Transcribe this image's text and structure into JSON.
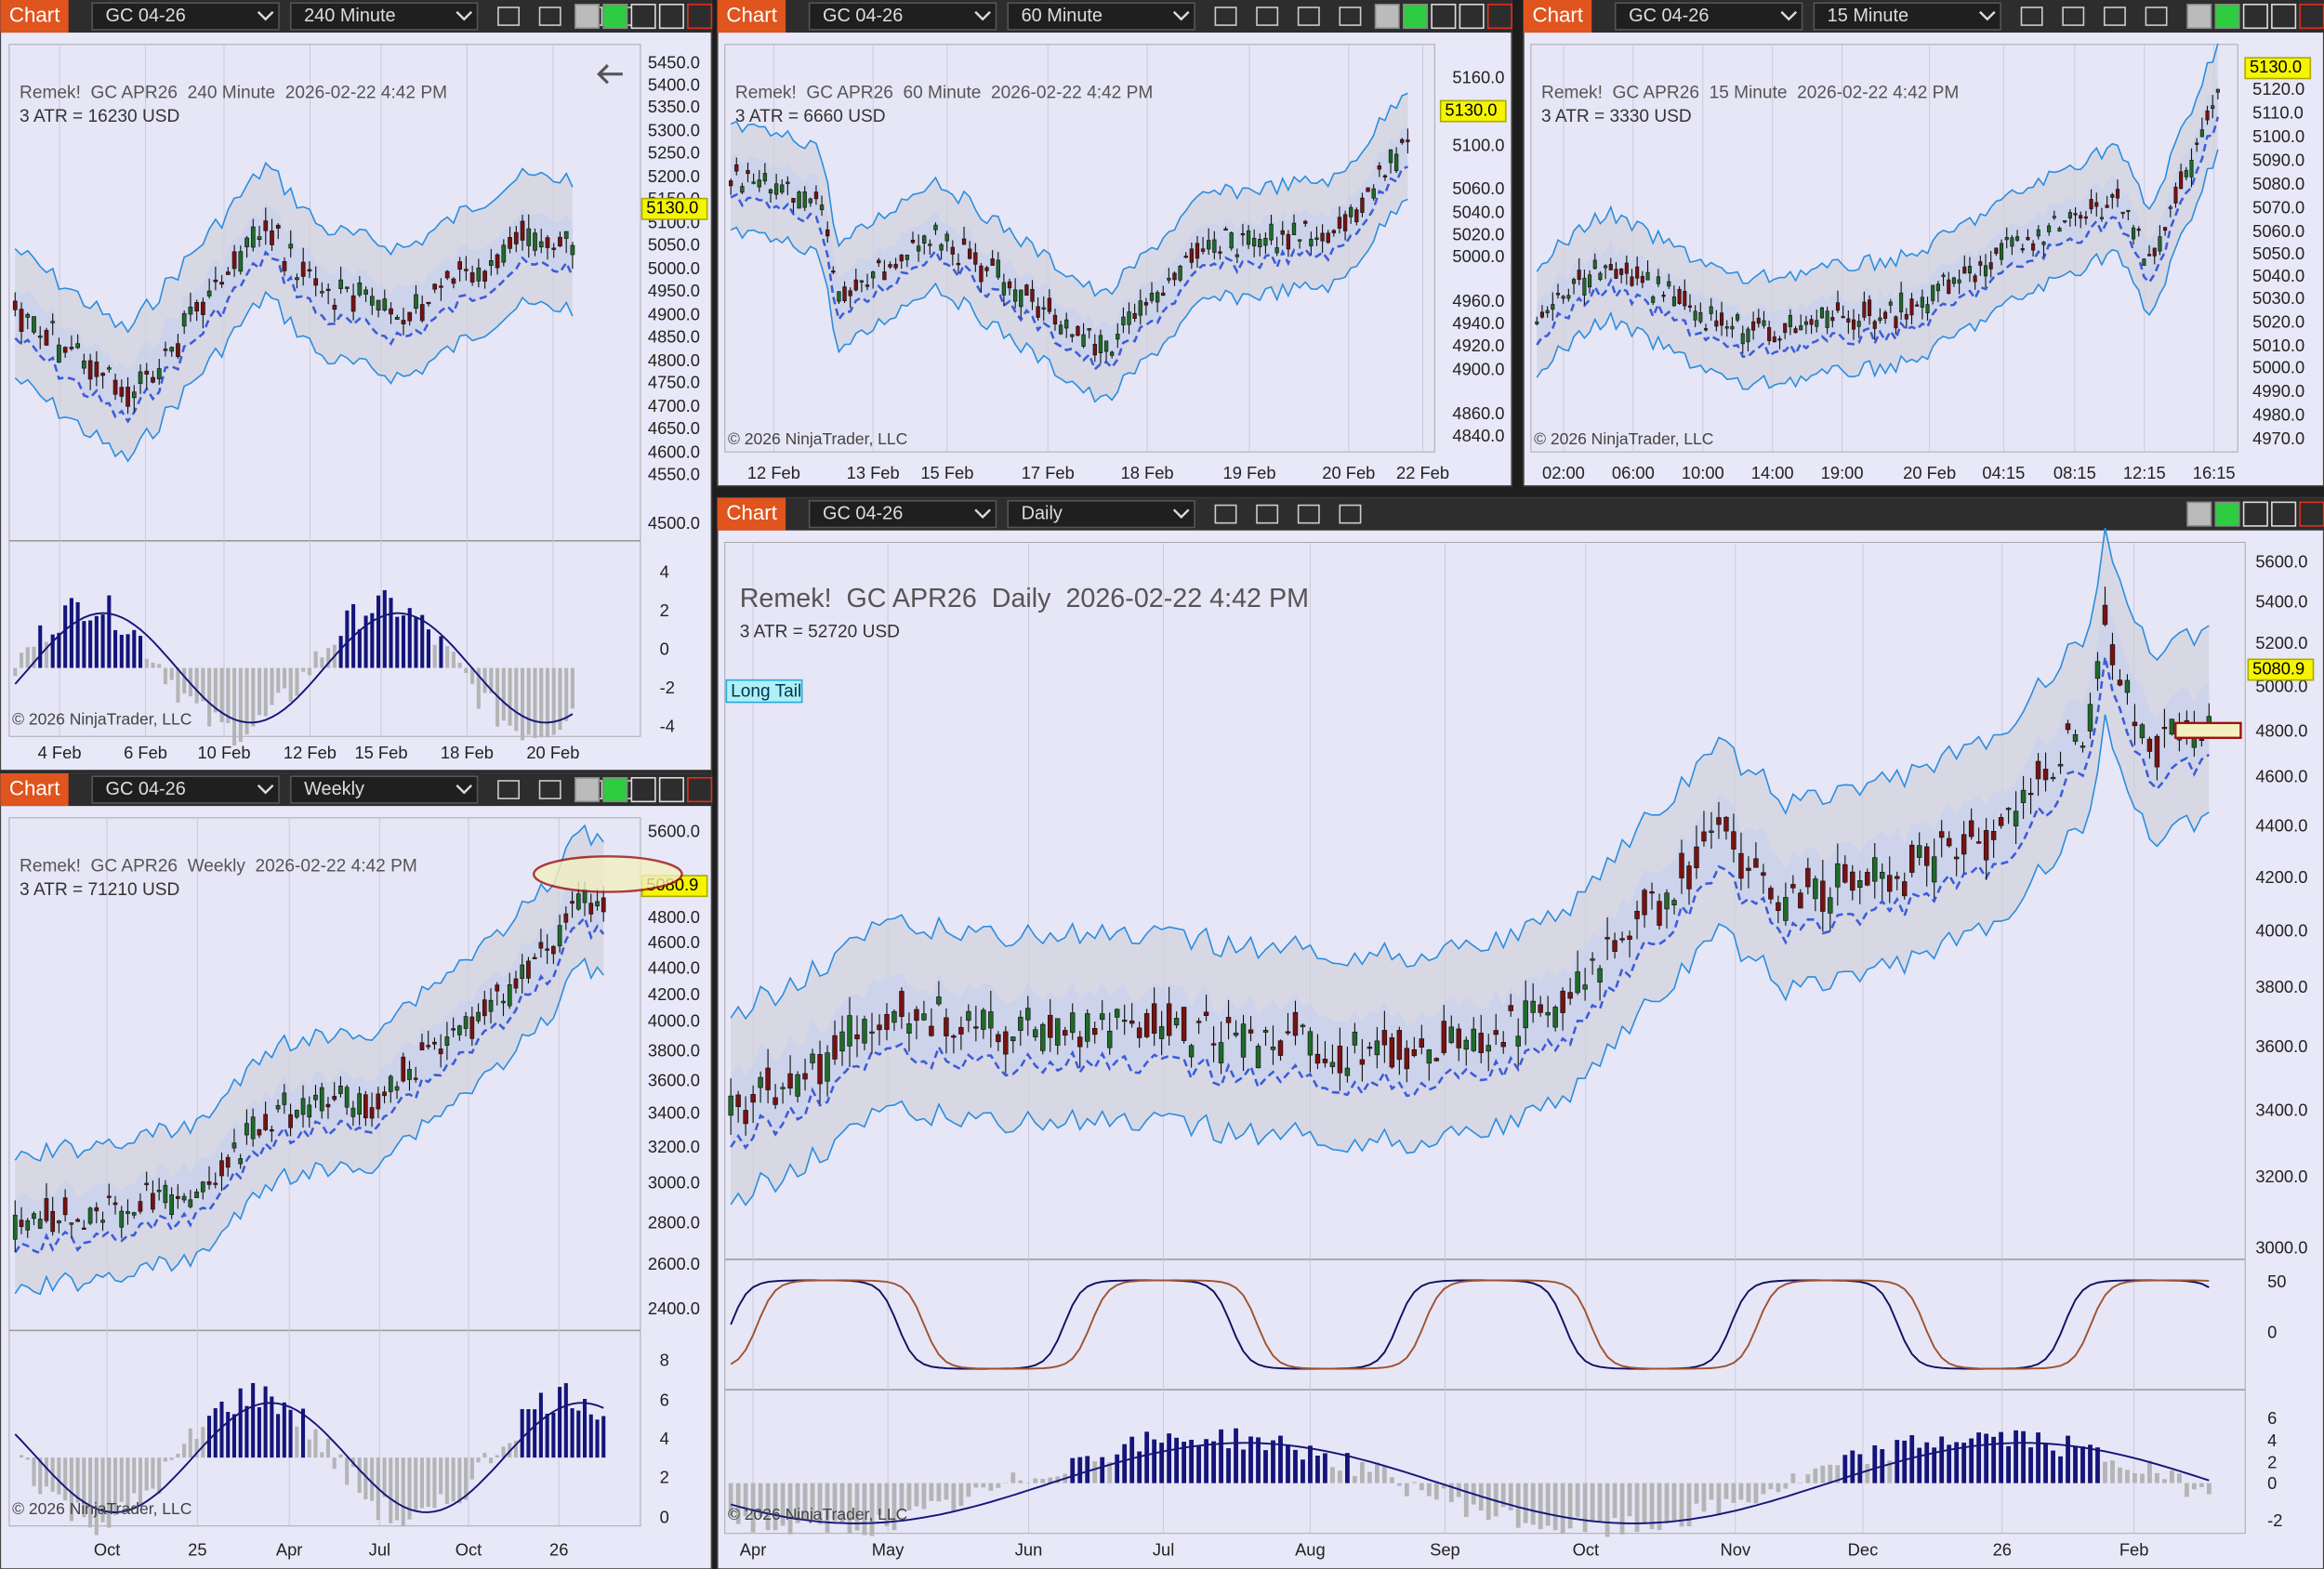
{
  "windows": [
    {
      "tab": "Chart",
      "instrument": "GC 04-26",
      "period": "240 Minute",
      "header": "Remek!  GC APR26  240 Minute  2026-02-22 4:42 PM",
      "atr": "3 ATR = 16230 USD",
      "price_tag": "5130.0",
      "copyright": "© 2026 NinjaTrader, LLC",
      "y_labels": [
        "5450.0",
        "5400.0",
        "5350.0",
        "5300.0",
        "5250.0",
        "5200.0",
        "5150.0",
        "5100.0",
        "5050.0",
        "5000.0",
        "4950.0",
        "4900.0",
        "4850.0",
        "4800.0",
        "4750.0",
        "4700.0",
        "4650.0",
        "4600.0",
        "4550.0",
        "4500.0"
      ],
      "indicator_labels": [
        "4",
        "2",
        "0",
        "-2",
        "-4"
      ],
      "x_labels": [
        "4 Feb",
        "6 Feb",
        "10 Feb",
        "12 Feb",
        "15 Feb",
        "18 Feb",
        "20 Feb"
      ]
    },
    {
      "tab": "Chart",
      "instrument": "GC 04-26",
      "period": "60 Minute",
      "header": "Remek!  GC APR26  60 Minute  2026-02-22 4:42 PM",
      "atr": "3 ATR = 6660 USD",
      "price_tag": "5130.0",
      "copyright": "© 2026 NinjaTrader, LLC",
      "y_labels": [
        "5160.0",
        "5100.0",
        "5060.0",
        "5040.0",
        "5020.0",
        "5000.0",
        "4960.0",
        "4940.0",
        "4920.0",
        "4900.0",
        "4860.0",
        "4840.0"
      ],
      "x_labels": [
        "12 Feb",
        "13 Feb",
        "15 Feb",
        "17 Feb",
        "18 Feb",
        "19 Feb",
        "20 Feb",
        "22 Feb"
      ]
    },
    {
      "tab": "Chart",
      "instrument": "GC 04-26",
      "period": "15 Minute",
      "header": "Remek!  GC APR26  15 Minute  2026-02-22 4:42 PM",
      "atr": "3 ATR = 3330 USD",
      "price_tag": "5130.0",
      "copyright": "© 2026 NinjaTrader, LLC",
      "y_labels": [
        "5120.0",
        "5110.0",
        "5100.0",
        "5090.0",
        "5080.0",
        "5070.0",
        "5060.0",
        "5050.0",
        "5040.0",
        "5030.0",
        "5020.0",
        "5010.0",
        "5000.0",
        "4990.0",
        "4980.0",
        "4970.0"
      ],
      "x_labels": [
        "02:00",
        "06:00",
        "10:00",
        "14:00",
        "19:00",
        "20 Feb",
        "04:15",
        "08:15",
        "12:15",
        "16:15"
      ]
    },
    {
      "tab": "Chart",
      "instrument": "GC 04-26",
      "period": "Weekly",
      "header": "Remek!  GC APR26  Weekly  2026-02-22 4:42 PM",
      "atr": "3 ATR = 71210 USD",
      "price_tag": "5080.9",
      "copyright": "© 2026 NinjaTrader, LLC",
      "y_labels": [
        "5600.0",
        "4800.0",
        "4600.0",
        "4400.0",
        "4200.0",
        "4000.0",
        "3800.0",
        "3600.0",
        "3400.0",
        "3200.0",
        "3000.0",
        "2800.0",
        "2600.0",
        "2400.0"
      ],
      "indicator_labels": [
        "8",
        "6",
        "4",
        "2",
        "0"
      ],
      "x_labels": [
        "Oct",
        "25",
        "Apr",
        "Jul",
        "Oct",
        "26"
      ]
    },
    {
      "tab": "Chart",
      "instrument": "GC 04-26",
      "period": "Daily",
      "header": "Remek!  GC APR26  Daily  2026-02-22 4:42 PM",
      "atr": "3 ATR = 52720 USD",
      "price_tag": "5080.9",
      "copyright": "© 2026 NinjaTrader, LLC",
      "y_labels": [
        "5600.0",
        "5400.0",
        "5200.0",
        "5000.0",
        "4800.0",
        "4600.0",
        "4400.0",
        "4200.0",
        "4000.0",
        "3800.0",
        "3600.0",
        "3400.0",
        "3200.0",
        "3000.0"
      ],
      "indicator_labels": [
        "50",
        "0"
      ],
      "indicator2_labels": [
        "6",
        "4",
        "2",
        "0",
        "-2"
      ],
      "x_labels": [
        "Apr",
        "May",
        "Jun",
        "Jul",
        "Aug",
        "Sep",
        "Oct",
        "Nov",
        "Dec",
        "26",
        "Feb"
      ]
    }
  ],
  "annotation": "Long Tail"
}
